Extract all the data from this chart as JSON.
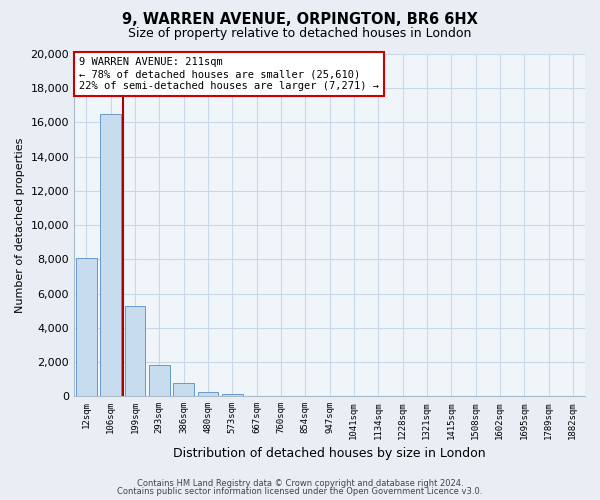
{
  "title_line1": "9, WARREN AVENUE, ORPINGTON, BR6 6HX",
  "title_line2": "Size of property relative to detached houses in London",
  "xlabel": "Distribution of detached houses by size in London",
  "ylabel": "Number of detached properties",
  "bar_labels": [
    "12sqm",
    "106sqm",
    "199sqm",
    "293sqm",
    "386sqm",
    "480sqm",
    "573sqm",
    "667sqm",
    "760sqm",
    "854sqm",
    "947sqm",
    "1041sqm",
    "1134sqm",
    "1228sqm",
    "1321sqm",
    "1415sqm",
    "1508sqm",
    "1602sqm",
    "1695sqm",
    "1789sqm",
    "1882sqm"
  ],
  "bar_values": [
    8100,
    16500,
    5300,
    1800,
    750,
    250,
    150,
    0,
    0,
    0,
    0,
    0,
    0,
    0,
    0,
    0,
    0,
    0,
    0,
    0,
    0
  ],
  "bar_color": "#c8dcf0",
  "bar_edge_color": "#6699cc",
  "ylim": [
    0,
    20000
  ],
  "yticks": [
    0,
    2000,
    4000,
    6000,
    8000,
    10000,
    12000,
    14000,
    16000,
    18000,
    20000
  ],
  "vline_color": "#aa0000",
  "annotation_title": "9 WARREN AVENUE: 211sqm",
  "annotation_line1": "← 78% of detached houses are smaller (25,610)",
  "annotation_line2": "22% of semi-detached houses are larger (7,271) →",
  "annotation_box_color": "white",
  "annotation_box_edge": "#cc0000",
  "footer_line1": "Contains HM Land Registry data © Crown copyright and database right 2024.",
  "footer_line2": "Contains public sector information licensed under the Open Government Licence v3.0.",
  "background_color": "#e8eef4",
  "plot_bg_color": "#f0f5fa",
  "grid_color": "#c8d8e8"
}
